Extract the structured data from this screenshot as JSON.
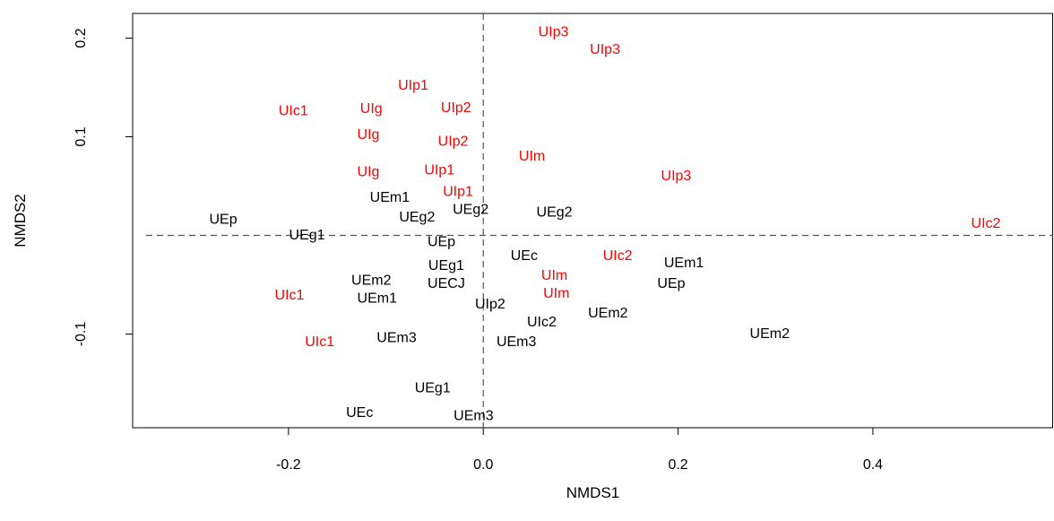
{
  "chart_data": {
    "type": "scatter",
    "title": "",
    "xlabel": "NMDS1",
    "ylabel": "NMDS2",
    "xlim": [
      -0.36,
      0.585
    ],
    "ylim": [
      -0.195,
      0.225
    ],
    "x_ticks": [
      -0.2,
      0.0,
      0.2,
      0.4
    ],
    "x_tick_labels": [
      "-0.2",
      "0.0",
      "0.2",
      "0.4"
    ],
    "y_ticks": [
      -0.1,
      0.1,
      0.2
    ],
    "y_tick_labels": [
      "-0.1",
      "0.1",
      "0.2"
    ],
    "reference_lines": {
      "x": 0.0,
      "y": 0.0,
      "style": "dashed"
    },
    "colors": {
      "red_group": "#ff0000",
      "black_group": "#000000"
    },
    "series": [
      {
        "color": "red",
        "points": [
          {
            "label": "UIp3",
            "x": 0.072,
            "y": 0.206
          },
          {
            "label": "UIp3",
            "x": 0.125,
            "y": 0.188
          },
          {
            "label": "UIp1",
            "x": -0.072,
            "y": 0.152
          },
          {
            "label": "UIc1",
            "x": -0.195,
            "y": 0.126
          },
          {
            "label": "UIg",
            "x": -0.115,
            "y": 0.128
          },
          {
            "label": "UIp2",
            "x": -0.028,
            "y": 0.129
          },
          {
            "label": "UIg",
            "x": -0.118,
            "y": 0.102
          },
          {
            "label": "UIp2",
            "x": -0.031,
            "y": 0.095
          },
          {
            "label": "UIm",
            "x": 0.05,
            "y": 0.08
          },
          {
            "label": "UIg",
            "x": -0.118,
            "y": 0.064
          },
          {
            "label": "UIp1",
            "x": -0.045,
            "y": 0.066
          },
          {
            "label": "UIp3",
            "x": 0.198,
            "y": 0.06
          },
          {
            "label": "UIp1",
            "x": -0.026,
            "y": 0.044
          },
          {
            "label": "UIc2",
            "x": 0.516,
            "y": 0.012
          },
          {
            "label": "UIc2",
            "x": 0.138,
            "y": -0.021
          },
          {
            "label": "UIm",
            "x": 0.073,
            "y": -0.041
          },
          {
            "label": "UIm",
            "x": 0.075,
            "y": -0.059
          },
          {
            "label": "UIc1",
            "x": -0.199,
            "y": -0.061
          },
          {
            "label": "UIc1",
            "x": -0.168,
            "y": -0.108
          }
        ]
      },
      {
        "color": "black",
        "points": [
          {
            "label": "UEm1",
            "x": -0.096,
            "y": 0.038
          },
          {
            "label": "UEg2",
            "x": -0.013,
            "y": 0.026
          },
          {
            "label": "UEg2",
            "x": 0.073,
            "y": 0.023
          },
          {
            "label": "UEg2",
            "x": -0.068,
            "y": 0.018
          },
          {
            "label": "UEp",
            "x": -0.267,
            "y": 0.016
          },
          {
            "label": "UEg1",
            "x": -0.181,
            "y": 0.0
          },
          {
            "label": "UEp",
            "x": -0.043,
            "y": -0.007
          },
          {
            "label": "UEc",
            "x": 0.042,
            "y": -0.021
          },
          {
            "label": "UEm1",
            "x": 0.206,
            "y": -0.028
          },
          {
            "label": "UEg1",
            "x": -0.038,
            "y": -0.031
          },
          {
            "label": "UEm2",
            "x": -0.115,
            "y": -0.046
          },
          {
            "label": "UECJ",
            "x": -0.038,
            "y": -0.049
          },
          {
            "label": "UEp",
            "x": 0.193,
            "y": -0.049
          },
          {
            "label": "UEm1",
            "x": -0.109,
            "y": -0.064
          },
          {
            "label": "UIp2",
            "x": 0.007,
            "y": -0.07
          },
          {
            "label": "UEm2",
            "x": 0.128,
            "y": -0.079
          },
          {
            "label": "UIc2",
            "x": 0.06,
            "y": -0.088
          },
          {
            "label": "UEm2",
            "x": 0.294,
            "y": -0.1
          },
          {
            "label": "UEm3",
            "x": -0.089,
            "y": -0.104
          },
          {
            "label": "UEm3",
            "x": 0.034,
            "y": -0.108
          },
          {
            "label": "UEg1",
            "x": -0.052,
            "y": -0.155
          },
          {
            "label": "UEc",
            "x": -0.127,
            "y": -0.18
          },
          {
            "label": "UEm3",
            "x": -0.01,
            "y": -0.183
          }
        ]
      }
    ]
  }
}
